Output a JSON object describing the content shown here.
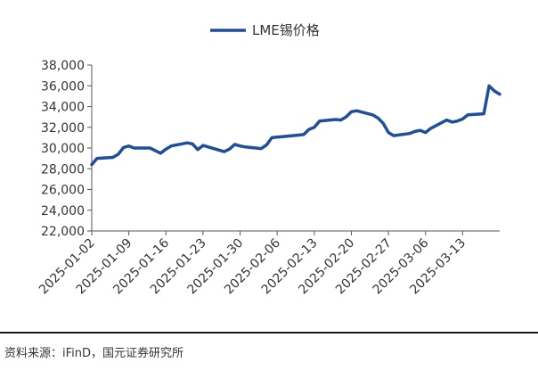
{
  "chart_data": {
    "type": "line",
    "title": "",
    "xlabel": "",
    "ylabel": "",
    "legend": {
      "position": "top-center",
      "label": "LME锡价格"
    },
    "series": [
      {
        "name": "LME锡价格",
        "color": "#1f4e9c",
        "points": [
          [
            "2025-01-02",
            28400
          ],
          [
            "2025-01-03",
            29000
          ],
          [
            "2025-01-06",
            29100
          ],
          [
            "2025-01-07",
            29400
          ],
          [
            "2025-01-08",
            30050
          ],
          [
            "2025-01-09",
            30200
          ],
          [
            "2025-01-10",
            30000
          ],
          [
            "2025-01-13",
            30000
          ],
          [
            "2025-01-14",
            29750
          ],
          [
            "2025-01-15",
            29500
          ],
          [
            "2025-01-16",
            29900
          ],
          [
            "2025-01-17",
            30200
          ],
          [
            "2025-01-20",
            30500
          ],
          [
            "2025-01-21",
            30400
          ],
          [
            "2025-01-22",
            29850
          ],
          [
            "2025-01-23",
            30250
          ],
          [
            "2025-01-24",
            30100
          ],
          [
            "2025-01-27",
            29650
          ],
          [
            "2025-01-28",
            29900
          ],
          [
            "2025-01-29",
            30350
          ],
          [
            "2025-01-30",
            30200
          ],
          [
            "2025-01-31",
            30100
          ],
          [
            "2025-02-03",
            29950
          ],
          [
            "2025-02-04",
            30300
          ],
          [
            "2025-02-05",
            31000
          ],
          [
            "2025-02-06",
            31050
          ],
          [
            "2025-02-07",
            31100
          ],
          [
            "2025-02-10",
            31250
          ],
          [
            "2025-02-11",
            31300
          ],
          [
            "2025-02-12",
            31800
          ],
          [
            "2025-02-13",
            32000
          ],
          [
            "2025-02-14",
            32600
          ],
          [
            "2025-02-17",
            32750
          ],
          [
            "2025-02-18",
            32700
          ],
          [
            "2025-02-19",
            33000
          ],
          [
            "2025-02-20",
            33500
          ],
          [
            "2025-02-21",
            33600
          ],
          [
            "2025-02-24",
            33200
          ],
          [
            "2025-02-25",
            32900
          ],
          [
            "2025-02-26",
            32400
          ],
          [
            "2025-02-27",
            31500
          ],
          [
            "2025-02-28",
            31200
          ],
          [
            "2025-03-03",
            31400
          ],
          [
            "2025-03-04",
            31600
          ],
          [
            "2025-03-05",
            31700
          ],
          [
            "2025-03-06",
            31500
          ],
          [
            "2025-03-07",
            31900
          ],
          [
            "2025-03-10",
            32700
          ],
          [
            "2025-03-11",
            32500
          ],
          [
            "2025-03-12",
            32600
          ],
          [
            "2025-03-13",
            32800
          ],
          [
            "2025-03-14",
            33200
          ],
          [
            "2025-03-17",
            33300
          ],
          [
            "2025-03-18",
            36000
          ],
          [
            "2025-03-19",
            35500
          ],
          [
            "2025-03-20",
            35200
          ]
        ]
      }
    ],
    "y_axis": {
      "min": 22000,
      "max": 38000,
      "step": 2000,
      "ticks": [
        "22,000",
        "24,000",
        "26,000",
        "28,000",
        "30,000",
        "32,000",
        "34,000",
        "36,000",
        "38,000"
      ]
    },
    "x_axis": {
      "range": [
        "2025-01-02",
        "2025-03-20"
      ],
      "ticks": [
        "2025-01-02",
        "2025-01-09",
        "2025-01-16",
        "2025-01-23",
        "2025-01-30",
        "2025-02-06",
        "2025-02-13",
        "2025-02-20",
        "2025-02-27",
        "2025-03-06",
        "2025-03-13"
      ],
      "label_rotation": -45
    },
    "grid": false
  },
  "source": "资料来源：iFinD，国元证券研究所"
}
